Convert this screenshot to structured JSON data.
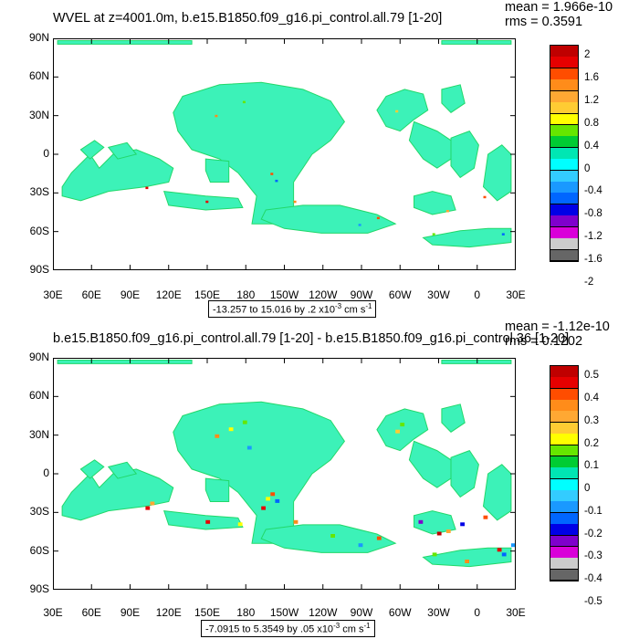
{
  "panels": [
    {
      "title": "WVEL at z=4001.0m, b.e15.B1850.f09_g16.pi_control.all.79 [1-20]",
      "mean": "mean = 1.966e-10",
      "rms": "rms = 0.3591",
      "range_prefix": "-13.257 to 15.016 by .2 x10",
      "range_exp": "-3",
      "range_unit": " cm s",
      "range_unit_exp": "-1",
      "colorbar_labels": [
        "2",
        "1.6",
        "1.2",
        "0.8",
        "0.4",
        "0",
        "-0.4",
        "-0.8",
        "-1.2",
        "-1.6",
        "-2"
      ]
    },
    {
      "title": "b.e15.B1850.f09_g16.pi_control.all.79 [1-20] - b.e15.B1850.f09_g16.pi_control.36 [1-20]",
      "mean": "mean = -1.12e-10",
      "rms": "rms = 0.1202",
      "range_prefix": "-7.0915 to 5.3549 by .05 x10",
      "range_exp": "-3",
      "range_unit": " cm s",
      "range_unit_exp": "-1",
      "colorbar_labels": [
        "0.5",
        "0.4",
        "0.3",
        "0.2",
        "0.1",
        "0",
        "-0.1",
        "-0.2",
        "-0.3",
        "-0.4",
        "-0.5"
      ]
    }
  ],
  "axes": {
    "lat_labels": [
      "90N",
      "60N",
      "30N",
      "0",
      "30S",
      "60S",
      "90S"
    ],
    "lon_labels": [
      "30E",
      "60E",
      "90E",
      "120E",
      "150E",
      "180",
      "150W",
      "120W",
      "90W",
      "60W",
      "30W",
      "0",
      "30E"
    ]
  },
  "colors": {
    "colorbar": [
      "#bf0000",
      "#e60000",
      "#ff4d00",
      "#ff8c1a",
      "#ffa833",
      "#ffcc33",
      "#ffff00",
      "#66e600",
      "#00cc33",
      "#00e6b3",
      "#00ffff",
      "#33ccff",
      "#1a99ff",
      "#0066ff",
      "#0000e6",
      "#7f00cc",
      "#d900d9",
      "#cccccc",
      "#666666"
    ],
    "field": "#3cf2b8",
    "field_dark": "#22d86a"
  },
  "chart_data": {
    "type": "heatmap",
    "panels": [
      {
        "title": "WVEL at z=4001.0m, b.e15.B1850.f09_g16.pi_control.all.79 [1-20]",
        "levels_min": -2,
        "levels_max": 2,
        "mean": 1.966e-10,
        "rms": 0.3591,
        "data_min": -13.257,
        "data_max": 15.016,
        "interval": 0.2
      },
      {
        "title": "b.e15.B1850.f09_g16.pi_control.all.79 [1-20] - b.e15.B1850.f09_g16.pi_control.36 [1-20]",
        "levels_min": -0.5,
        "levels_max": 0.5,
        "mean": -1.12e-10,
        "rms": 0.1202,
        "data_min": -7.0915,
        "data_max": 5.3549,
        "interval": 0.05
      }
    ],
    "xlabel": "",
    "ylabel": "",
    "xlim": [
      "30E",
      "30E"
    ],
    "ylim": [
      "90S",
      "90N"
    ]
  }
}
